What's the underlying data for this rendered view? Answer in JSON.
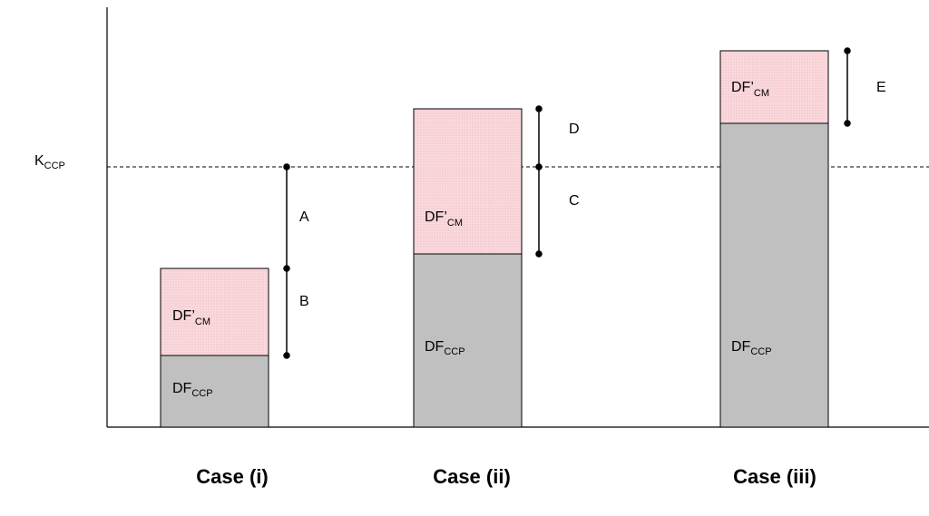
{
  "y_axis_label": {
    "main": "K",
    "sub": "CCP"
  },
  "bars": [
    {
      "case_label": "Case (i)",
      "segments": [
        {
          "kind": "DF_CCP",
          "main": "DF",
          "sub": "CCP"
        },
        {
          "kind": "DF_CM",
          "main": "DF’",
          "sub": "CM"
        }
      ],
      "brackets": [
        "A",
        "B"
      ]
    },
    {
      "case_label": "Case (ii)",
      "segments": [
        {
          "kind": "DF_CCP",
          "main": "DF",
          "sub": "CCP"
        },
        {
          "kind": "DF_CM",
          "main": "DF’",
          "sub": "CM"
        }
      ],
      "brackets": [
        "C",
        "D"
      ]
    },
    {
      "case_label": "Case (iii)",
      "segments": [
        {
          "kind": "DF_CCP",
          "main": "DF",
          "sub": "CCP"
        },
        {
          "kind": "DF_CM",
          "main": "DF’",
          "sub": "CM"
        }
      ],
      "brackets": [
        "E"
      ]
    }
  ],
  "colors": {
    "df_ccp": "#c0c0c0",
    "df_cm": "#f8d0d4",
    "line": "#000000"
  }
}
